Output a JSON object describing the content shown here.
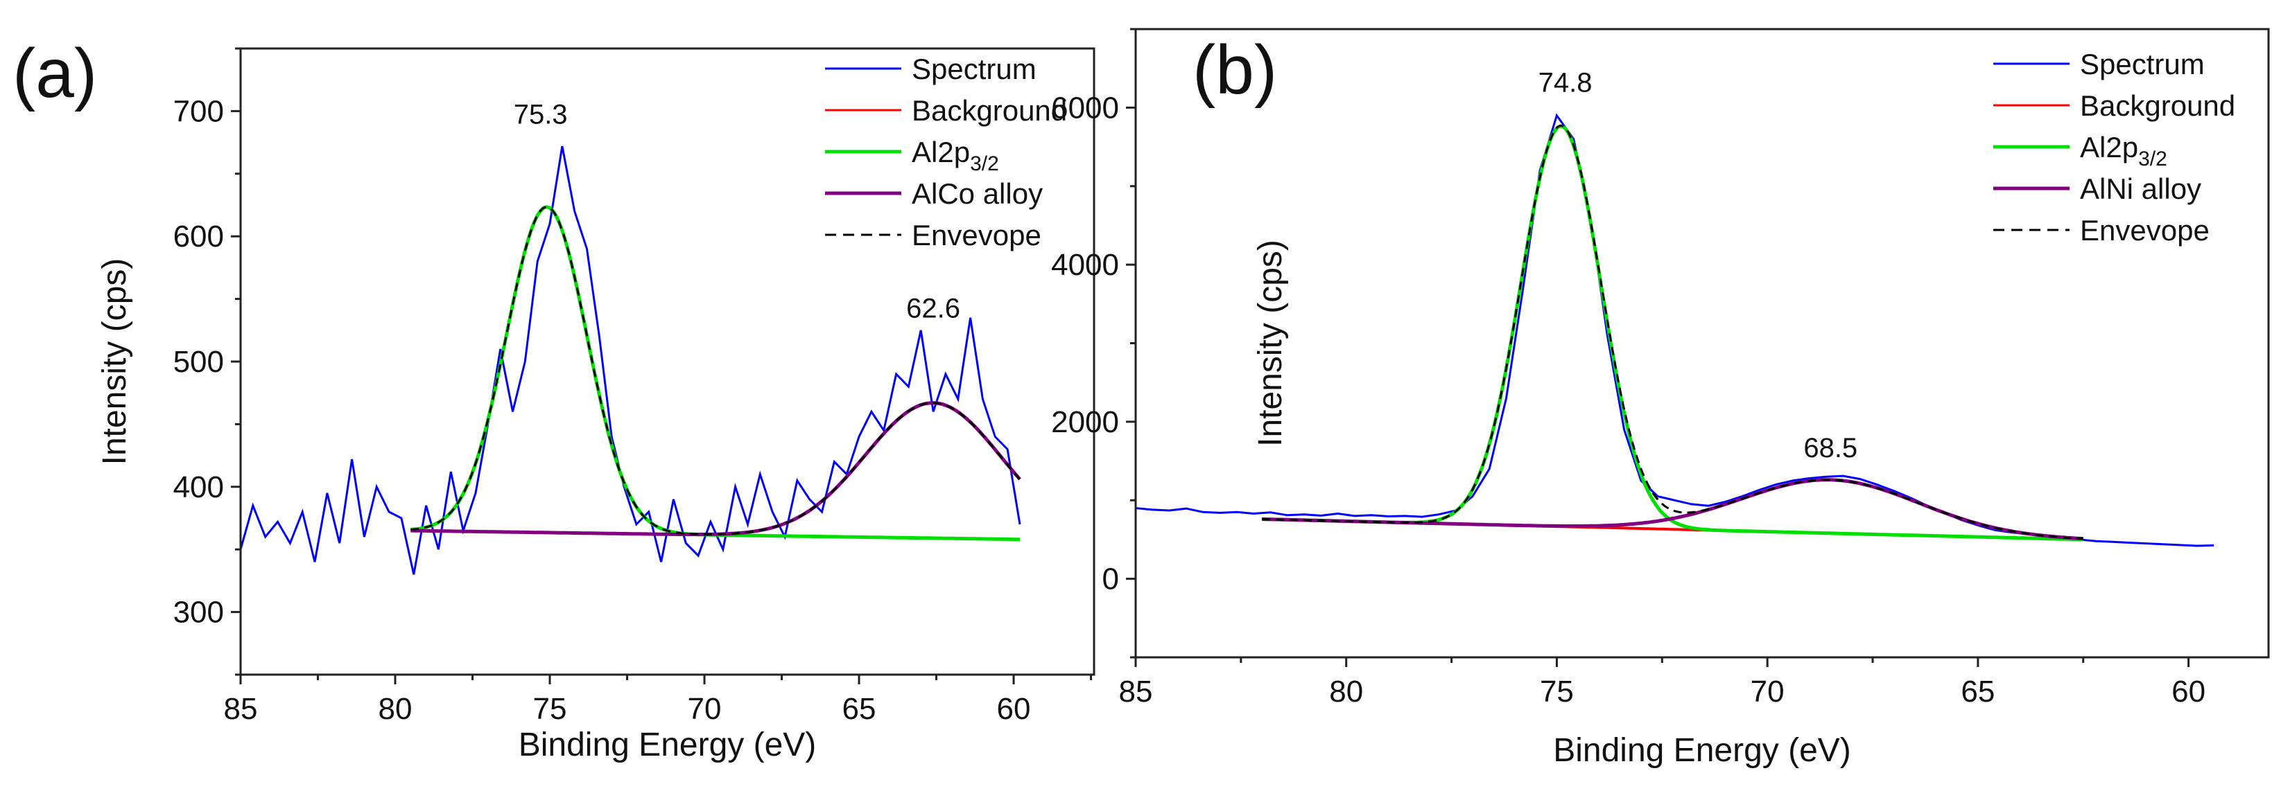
{
  "chart_data": [
    {
      "type": "line",
      "panel_label": "(a)",
      "xlabel": "Binding Energy (eV)",
      "ylabel": "Intensity (cps)",
      "xlim": [
        85,
        57.4
      ],
      "ylim": [
        250,
        750
      ],
      "xticks": [
        85,
        80,
        75,
        70,
        65,
        60
      ],
      "yticks": [
        300,
        400,
        500,
        600,
        700
      ],
      "grid": false,
      "legend_position": "top-right",
      "annotations": [
        {
          "text": "75.3",
          "x": 75.3,
          "y": 690
        },
        {
          "text": "62.6",
          "x": 62.6,
          "y": 535
        }
      ],
      "spectrum": {
        "name": "Spectrum",
        "color": "#0000ff",
        "x_start": 85,
        "x_step": -0.4,
        "y": [
          350,
          385,
          360,
          372,
          355,
          380,
          340,
          395,
          355,
          422,
          360,
          400,
          380,
          375,
          330,
          385,
          350,
          412,
          365,
          395,
          450,
          510,
          460,
          500,
          580,
          610,
          672,
          620,
          590,
          520,
          440,
          400,
          370,
          380,
          340,
          390,
          355,
          345,
          372,
          350,
          400,
          370,
          410,
          380,
          360,
          405,
          390,
          380,
          420,
          410,
          440,
          460,
          445,
          490,
          480,
          525,
          460,
          490,
          470,
          535,
          470,
          440,
          430,
          370
        ]
      },
      "background": {
        "name": "Background",
        "color": "#ff0000",
        "x": [
          79.5,
          59.8
        ],
        "y": [
          365,
          358
        ]
      },
      "components": [
        {
          "name": "Al2p",
          "sub": "3/2",
          "color": "#00e000",
          "center": 75.1,
          "amplitude": 260,
          "sigma": 1.3,
          "range": [
            79.5,
            59.8
          ]
        },
        {
          "name": "AlCo alloy",
          "sub": "",
          "color": "#800080",
          "center": 62.6,
          "amplitude": 108,
          "sigma": 2.2,
          "range": [
            79.5,
            59.8
          ]
        }
      ],
      "envelope": {
        "name": "Envevope",
        "color": "#000000"
      }
    },
    {
      "type": "line",
      "panel_label": "(b)",
      "xlabel": "Binding Energy (eV)",
      "ylabel": "Intensity (cps)",
      "xlim": [
        85,
        58.1
      ],
      "ylim": [
        -1000,
        7000
      ],
      "xticks": [
        85,
        80,
        75,
        70,
        65,
        60
      ],
      "yticks": [
        0,
        2000,
        4000,
        6000
      ],
      "grid": false,
      "legend_position": "top-right",
      "annotations": [
        {
          "text": "74.8",
          "x": 74.8,
          "y": 6200
        },
        {
          "text": "68.5",
          "x": 68.5,
          "y": 1550
        }
      ],
      "spectrum": {
        "name": "Spectrum",
        "color": "#0000ff",
        "x_start": 85,
        "x_step": -0.4,
        "y": [
          900,
          880,
          870,
          895,
          850,
          840,
          850,
          830,
          845,
          810,
          820,
          805,
          830,
          800,
          810,
          795,
          800,
          790,
          820,
          870,
          1050,
          1400,
          2300,
          3700,
          5200,
          5900,
          5600,
          4600,
          3100,
          1900,
          1250,
          1050,
          1000,
          950,
          930,
          980,
          1050,
          1130,
          1200,
          1250,
          1280,
          1300,
          1310,
          1270,
          1200,
          1120,
          1030,
          930,
          840,
          750,
          680,
          620,
          590,
          570,
          540,
          520,
          500,
          480,
          470,
          460,
          450,
          440,
          430,
          420,
          425
        ]
      },
      "background": {
        "name": "Background",
        "color": "#ff0000",
        "x": [
          82,
          62.5
        ],
        "y": [
          760,
          500
        ]
      },
      "components": [
        {
          "name": "Al2p",
          "sub": "3/2",
          "color": "#00e000",
          "center": 74.9,
          "amplitude": 5100,
          "sigma": 0.95,
          "range": [
            82,
            62.5
          ]
        },
        {
          "name": "AlNi alloy",
          "sub": "",
          "color": "#800080",
          "center": 68.5,
          "amplitude": 680,
          "sigma": 2.1,
          "range": [
            82,
            62.5
          ]
        }
      ],
      "envelope": {
        "name": "Envevope",
        "color": "#000000"
      }
    }
  ]
}
